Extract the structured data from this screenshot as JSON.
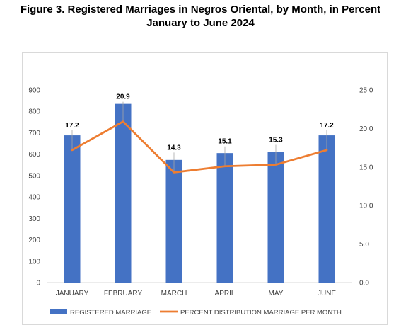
{
  "header": {
    "title_line1": "Figure 3.  Registered Marriages in Negros Oriental, by Month, in Percent",
    "title_line2": "January to June 2024"
  },
  "chart_data": {
    "type": "bar",
    "categories": [
      "JANUARY",
      "FEBRUARY",
      "MARCH",
      "APRIL",
      "MAY",
      "JUNE"
    ],
    "series": [
      {
        "name": "REGISTERED MARRIAGE",
        "type": "bar",
        "axis": "left",
        "color": "#4472c4",
        "values": [
          688,
          835,
          573,
          605,
          612,
          688
        ]
      },
      {
        "name": "PERCENT DISTRIBUTION MARRIAGE PER MONTH",
        "type": "line",
        "axis": "right",
        "color": "#ed7d31",
        "values": [
          17.2,
          20.9,
          14.3,
          15.1,
          15.3,
          17.2
        ]
      }
    ],
    "data_labels": [
      "17.2",
      "20.9",
      "14.3",
      "15.1",
      "15.3",
      "17.2"
    ],
    "y_left": {
      "min": 0,
      "max": 900,
      "step": 100,
      "ticks": [
        "0",
        "100",
        "200",
        "300",
        "400",
        "500",
        "600",
        "700",
        "800",
        "900"
      ]
    },
    "y_right": {
      "min": 0,
      "max": 25,
      "step": 5,
      "ticks": [
        "0.0",
        "5.0",
        "10.0",
        "15.0",
        "20.0",
        "25.0"
      ]
    },
    "grid": false,
    "legend_position": "bottom"
  }
}
